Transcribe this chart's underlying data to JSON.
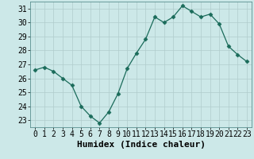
{
  "x": [
    0,
    1,
    2,
    3,
    4,
    5,
    6,
    7,
    8,
    9,
    10,
    11,
    12,
    13,
    14,
    15,
    16,
    17,
    18,
    19,
    20,
    21,
    22,
    23
  ],
  "y": [
    26.6,
    26.8,
    26.5,
    26.0,
    25.5,
    24.0,
    23.3,
    22.8,
    23.6,
    24.9,
    26.7,
    27.8,
    28.8,
    30.4,
    30.0,
    30.4,
    31.2,
    30.8,
    30.4,
    30.6,
    29.9,
    28.3,
    27.7,
    27.2
  ],
  "xlabel": "Humidex (Indice chaleur)",
  "xlim": [
    -0.5,
    23.5
  ],
  "ylim": [
    22.5,
    31.5
  ],
  "yticks": [
    23,
    24,
    25,
    26,
    27,
    28,
    29,
    30,
    31
  ],
  "xticks": [
    0,
    1,
    2,
    3,
    4,
    5,
    6,
    7,
    8,
    9,
    10,
    11,
    12,
    13,
    14,
    15,
    16,
    17,
    18,
    19,
    20,
    21,
    22,
    23
  ],
  "line_color": "#1a6b5a",
  "marker": "D",
  "marker_size": 2.5,
  "bg_color": "#cce8e8",
  "grid_color": "#b0cccc",
  "xlabel_fontsize": 8,
  "tick_fontsize": 7
}
